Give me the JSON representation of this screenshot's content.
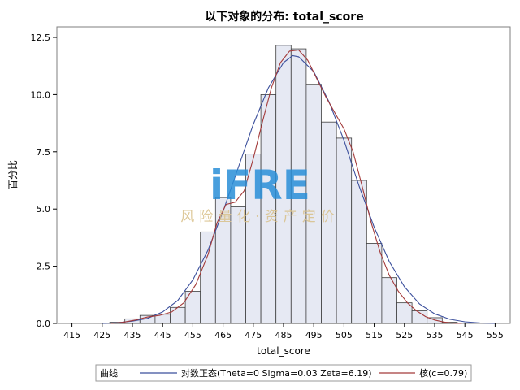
{
  "chart_data": {
    "type": "bar",
    "title": "以下对象的分布: total_score",
    "xlabel": "total_score",
    "ylabel": "百分比",
    "xlim": [
      410,
      560
    ],
    "ylim": [
      0,
      12.5
    ],
    "x_ticks": [
      "415",
      "425",
      "435",
      "445",
      "455",
      "465",
      "475",
      "485",
      "495",
      "505",
      "515",
      "525",
      "535",
      "545",
      "555"
    ],
    "x_tick_values": [
      415,
      425,
      435,
      445,
      455,
      465,
      475,
      485,
      495,
      505,
      515,
      525,
      535,
      545,
      555
    ],
    "y_ticks": [
      "0.0",
      "2.5",
      "5.0",
      "7.5",
      "10.0",
      "12.5"
    ],
    "y_tick_values": [
      0,
      2.5,
      5.0,
      7.5,
      10.0,
      12.5
    ],
    "bin_width": 5,
    "bins": [
      {
        "x": 430,
        "value": 0.05
      },
      {
        "x": 435,
        "value": 0.2
      },
      {
        "x": 440,
        "value": 0.35
      },
      {
        "x": 445,
        "value": 0.4
      },
      {
        "x": 450,
        "value": 0.7
      },
      {
        "x": 455,
        "value": 1.4
      },
      {
        "x": 460,
        "value": 4.0
      },
      {
        "x": 465,
        "value": 5.5
      },
      {
        "x": 470,
        "value": 5.1
      },
      {
        "x": 475,
        "value": 7.4
      },
      {
        "x": 480,
        "value": 10.0
      },
      {
        "x": 485,
        "value": 12.15
      },
      {
        "x": 490,
        "value": 12.0
      },
      {
        "x": 495,
        "value": 10.45
      },
      {
        "x": 500,
        "value": 8.8
      },
      {
        "x": 505,
        "value": 8.1
      },
      {
        "x": 510,
        "value": 6.25
      },
      {
        "x": 515,
        "value": 3.5
      },
      {
        "x": 520,
        "value": 2.0
      },
      {
        "x": 525,
        "value": 0.9
      },
      {
        "x": 530,
        "value": 0.55
      },
      {
        "x": 535,
        "value": 0.25
      },
      {
        "x": 540,
        "value": 0.05
      }
    ],
    "curves": [
      {
        "name": "对数正态(Theta=0 Sigma=0.03 Zeta=6.19)",
        "color": "#3b4f9c",
        "points": [
          [
            425,
            0.0
          ],
          [
            430,
            0.03
          ],
          [
            435,
            0.1
          ],
          [
            440,
            0.22
          ],
          [
            445,
            0.5
          ],
          [
            450,
            1.0
          ],
          [
            455,
            1.9
          ],
          [
            460,
            3.2
          ],
          [
            465,
            4.9
          ],
          [
            470,
            6.8
          ],
          [
            475,
            8.7
          ],
          [
            480,
            10.3
          ],
          [
            485,
            11.4
          ],
          [
            488,
            11.7
          ],
          [
            490,
            11.65
          ],
          [
            495,
            11.0
          ],
          [
            500,
            9.7
          ],
          [
            505,
            8.0
          ],
          [
            510,
            6.0
          ],
          [
            515,
            4.2
          ],
          [
            520,
            2.7
          ],
          [
            525,
            1.6
          ],
          [
            530,
            0.85
          ],
          [
            535,
            0.42
          ],
          [
            540,
            0.18
          ],
          [
            545,
            0.07
          ],
          [
            550,
            0.02
          ],
          [
            555,
            0.0
          ]
        ]
      },
      {
        "name": "核(c=0.79)",
        "color": "#a33a3a",
        "points": [
          [
            428,
            0.0
          ],
          [
            432,
            0.05
          ],
          [
            436,
            0.15
          ],
          [
            440,
            0.28
          ],
          [
            444,
            0.35
          ],
          [
            448,
            0.5
          ],
          [
            452,
            0.9
          ],
          [
            456,
            1.7
          ],
          [
            460,
            3.0
          ],
          [
            463,
            4.4
          ],
          [
            466,
            5.2
          ],
          [
            469,
            5.3
          ],
          [
            472,
            5.8
          ],
          [
            475,
            7.2
          ],
          [
            478,
            8.8
          ],
          [
            481,
            10.3
          ],
          [
            484,
            11.4
          ],
          [
            487,
            11.9
          ],
          [
            490,
            11.95
          ],
          [
            493,
            11.5
          ],
          [
            496,
            10.7
          ],
          [
            499,
            9.9
          ],
          [
            502,
            9.2
          ],
          [
            505,
            8.5
          ],
          [
            508,
            7.5
          ],
          [
            511,
            6.0
          ],
          [
            514,
            4.4
          ],
          [
            517,
            3.1
          ],
          [
            520,
            2.1
          ],
          [
            523,
            1.4
          ],
          [
            526,
            0.9
          ],
          [
            529,
            0.55
          ],
          [
            532,
            0.3
          ],
          [
            535,
            0.15
          ],
          [
            538,
            0.06
          ],
          [
            541,
            0.01
          ],
          [
            544,
            0.0
          ]
        ]
      }
    ],
    "legend": {
      "label": "曲线",
      "position": "bottom"
    }
  },
  "watermark": {
    "main": "iFRE",
    "sub": "风险量化·资产定价"
  }
}
